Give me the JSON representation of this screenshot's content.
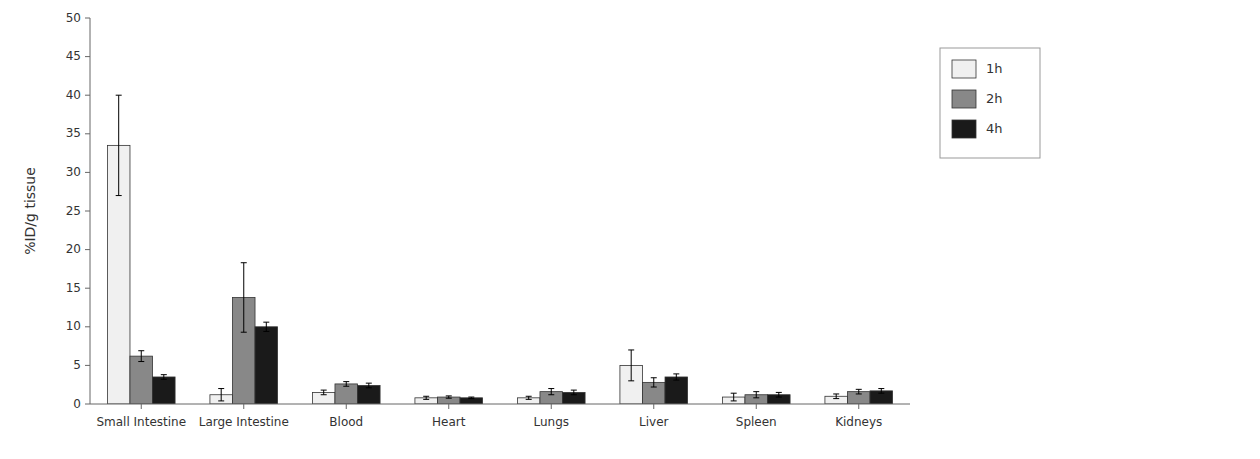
{
  "chart_data": {
    "type": "bar",
    "categories": [
      "Small Intestine",
      "Large Intestine",
      "Blood",
      "Heart",
      "Lungs",
      "Liver",
      "Spleen",
      "Kidneys"
    ],
    "series": [
      {
        "name": "1h",
        "color": "#f0f0f0",
        "values": [
          33.5,
          1.2,
          1.5,
          0.8,
          0.8,
          5.0,
          0.9,
          1.0
        ],
        "errors": [
          6.5,
          0.8,
          0.3,
          0.2,
          0.2,
          2.0,
          0.5,
          0.3
        ]
      },
      {
        "name": "2h",
        "color": "#888888",
        "values": [
          6.2,
          13.8,
          2.6,
          0.9,
          1.6,
          2.8,
          1.2,
          1.6
        ],
        "errors": [
          0.7,
          4.5,
          0.3,
          0.15,
          0.4,
          0.6,
          0.4,
          0.3
        ]
      },
      {
        "name": "4h",
        "color": "#1a1a1a",
        "values": [
          3.5,
          10.0,
          2.4,
          0.8,
          1.5,
          3.5,
          1.2,
          1.7
        ],
        "errors": [
          0.3,
          0.6,
          0.3,
          0.1,
          0.3,
          0.4,
          0.3,
          0.3
        ]
      }
    ],
    "ylabel": "%ID/g tissue",
    "ylim": [
      0,
      50
    ],
    "yticks": [
      0,
      5,
      10,
      15,
      20,
      25,
      30,
      35,
      40,
      45,
      50
    ],
    "grid": false,
    "legend": "right"
  }
}
